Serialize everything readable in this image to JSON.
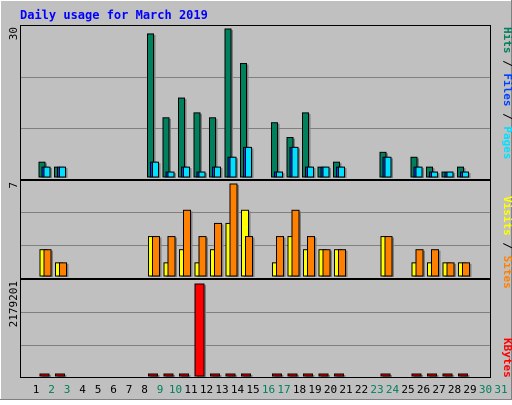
{
  "title": "Daily usage for March 2019",
  "colors": {
    "frame": "#c0c0c0",
    "plot": "#c0c0c0",
    "hits": "#00805c",
    "files": "#0040ff",
    "pages": "#00e0ff",
    "visits": "#ffff00",
    "sites": "#ff8000",
    "kbytes": "#ff0000",
    "title": "#0000ff",
    "day_weekday": "#000000",
    "day_weekend": "#00805c"
  },
  "chart_data": [
    {
      "type": "bar",
      "panel": "hits-files-pages",
      "ymax_label": "30",
      "ylim": [
        0,
        30
      ],
      "legend": {
        "hits": "Hits",
        "files": "Files",
        "pages": "Pages",
        "sep1": " / ",
        "sep2": " / "
      },
      "categories": [
        "1",
        "2",
        "3",
        "4",
        "5",
        "6",
        "7",
        "8",
        "9",
        "10",
        "11",
        "12",
        "13",
        "14",
        "15",
        "16",
        "17",
        "18",
        "19",
        "20",
        "21",
        "22",
        "23",
        "24",
        "25",
        "26",
        "27",
        "28",
        "29",
        "30",
        "31"
      ],
      "series": [
        {
          "name": "Hits",
          "values": [
            3,
            2,
            0,
            0,
            0,
            0,
            0,
            29,
            12,
            16,
            13,
            12,
            30,
            23,
            0,
            11,
            8,
            13,
            2,
            3,
            0,
            0,
            5,
            0,
            4,
            2,
            1,
            2,
            0,
            0,
            0
          ]
        },
        {
          "name": "Files",
          "values": [
            2,
            2,
            0,
            0,
            0,
            0,
            0,
            3,
            1,
            2,
            1,
            2,
            4,
            6,
            0,
            1,
            6,
            2,
            2,
            2,
            0,
            0,
            4,
            0,
            2,
            1,
            1,
            1,
            0,
            0,
            0
          ]
        },
        {
          "name": "Pages",
          "values": [
            2,
            2,
            0,
            0,
            0,
            0,
            0,
            3,
            1,
            2,
            1,
            2,
            4,
            6,
            0,
            1,
            6,
            2,
            2,
            2,
            0,
            0,
            4,
            0,
            2,
            1,
            1,
            1,
            0,
            0,
            0
          ]
        }
      ]
    },
    {
      "type": "bar",
      "panel": "visits-sites",
      "ymax_label": "7",
      "ylim": [
        0,
        7
      ],
      "legend": {
        "visits": "Visits",
        "sites": "Sites",
        "sep": " / "
      },
      "categories": [
        "1",
        "2",
        "3",
        "4",
        "5",
        "6",
        "7",
        "8",
        "9",
        "10",
        "11",
        "12",
        "13",
        "14",
        "15",
        "16",
        "17",
        "18",
        "19",
        "20",
        "21",
        "22",
        "23",
        "24",
        "25",
        "26",
        "27",
        "28",
        "29",
        "30",
        "31"
      ],
      "series": [
        {
          "name": "Visits",
          "values": [
            2,
            1,
            0,
            0,
            0,
            0,
            0,
            3,
            1,
            2,
            1,
            2,
            4,
            5,
            0,
            1,
            3,
            2,
            2,
            2,
            0,
            0,
            3,
            0,
            1,
            1,
            1,
            1,
            0,
            0,
            0
          ]
        },
        {
          "name": "Sites",
          "values": [
            2,
            1,
            0,
            0,
            0,
            0,
            0,
            3,
            3,
            5,
            3,
            4,
            7,
            3,
            0,
            3,
            5,
            3,
            2,
            2,
            0,
            0,
            3,
            0,
            2,
            2,
            1,
            1,
            0,
            0,
            0
          ]
        }
      ]
    },
    {
      "type": "bar",
      "panel": "kbytes",
      "ymax_label": "2179201",
      "ylim": [
        0,
        2179201
      ],
      "legend": {
        "kbytes": "KBytes"
      },
      "categories": [
        "1",
        "2",
        "3",
        "4",
        "5",
        "6",
        "7",
        "8",
        "9",
        "10",
        "11",
        "12",
        "13",
        "14",
        "15",
        "16",
        "17",
        "18",
        "19",
        "20",
        "21",
        "22",
        "23",
        "24",
        "25",
        "26",
        "27",
        "28",
        "29",
        "30",
        "31"
      ],
      "series": [
        {
          "name": "KBytes",
          "values": [
            12000,
            12000,
            0,
            0,
            0,
            0,
            0,
            12000,
            12000,
            12000,
            2179201,
            12000,
            12000,
            12000,
            0,
            12000,
            12000,
            12000,
            12000,
            12000,
            0,
            0,
            12000,
            0,
            12000,
            12000,
            12000,
            12000,
            0,
            0,
            0
          ]
        }
      ]
    }
  ],
  "weekend_days": [
    2,
    3,
    9,
    10,
    16,
    17,
    23,
    24,
    30,
    31
  ]
}
